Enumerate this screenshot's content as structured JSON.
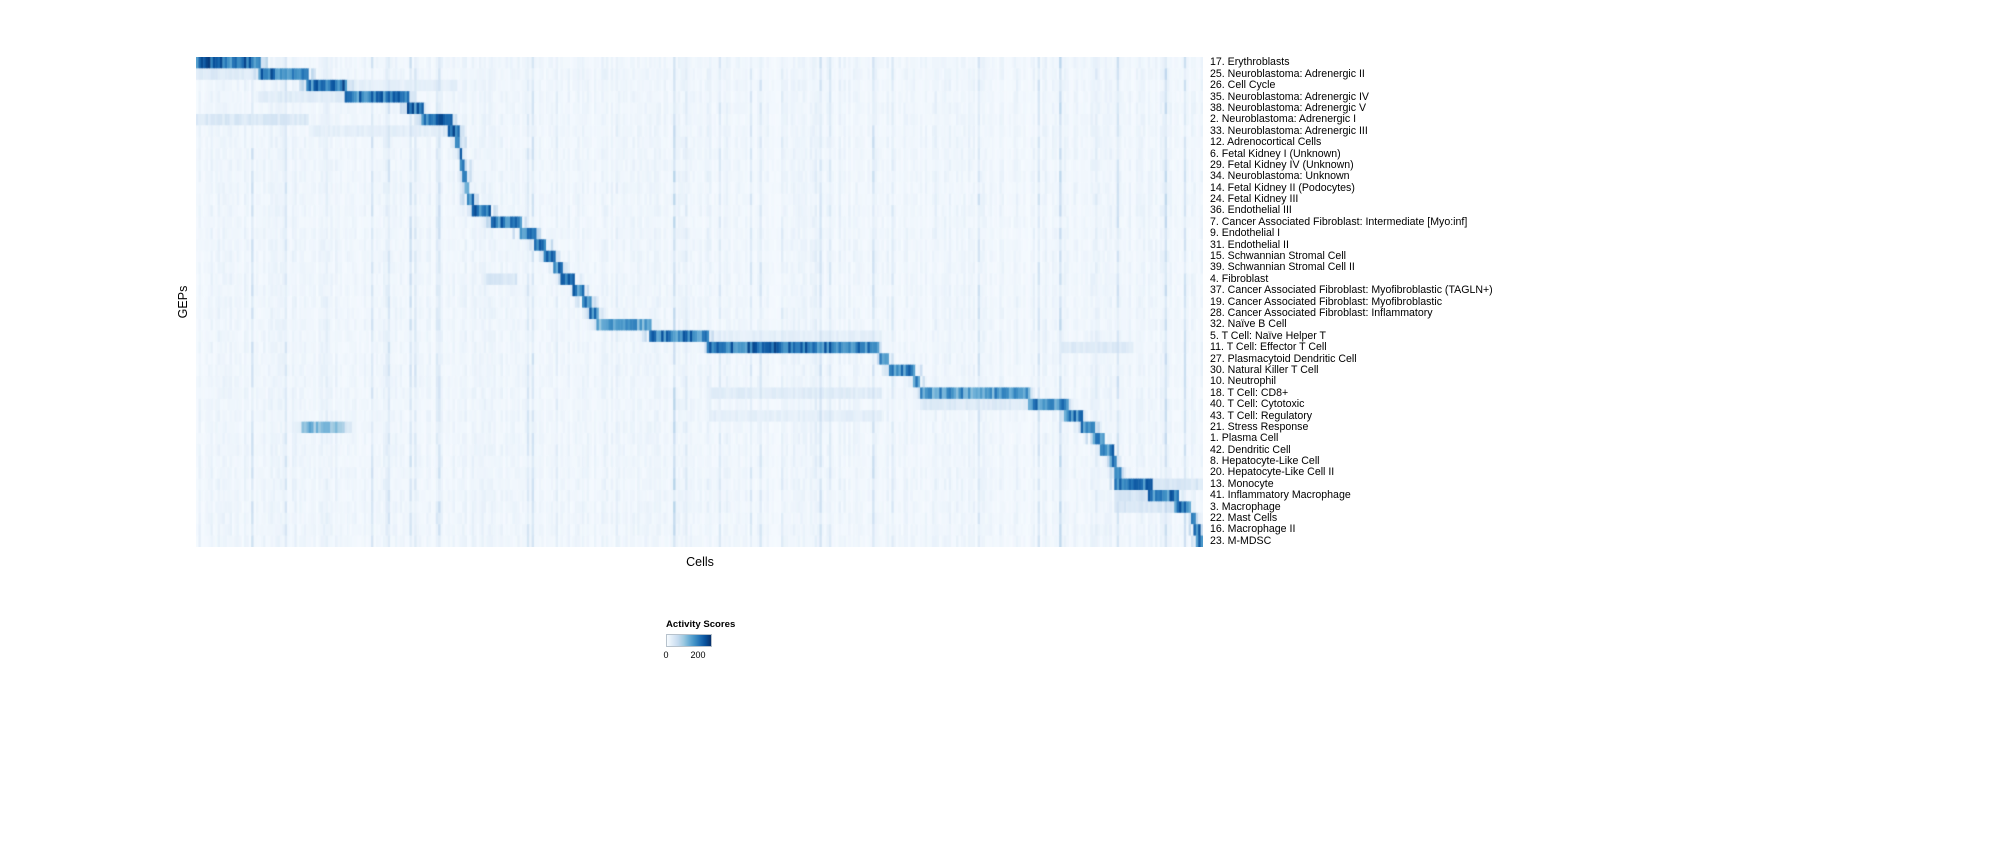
{
  "figure": {
    "xlabel": "Cells",
    "ylabel": "GEPs"
  },
  "chart_data": {
    "type": "heatmap",
    "title": "",
    "xlabel": "Cells",
    "ylabel": "GEPs",
    "grid": false,
    "legend_position": "bottom-center",
    "colorbar": {
      "title": "Activity Scores",
      "min": 0,
      "max": 200,
      "min_label": "0",
      "max_label": "200",
      "palette": [
        "#f7fbff",
        "#deebf7",
        "#c6dbef",
        "#9ecae1",
        "#6baed6",
        "#4292c6",
        "#2171b5",
        "#08519c",
        "#08306b"
      ]
    },
    "value_cap": 215,
    "background_noise": {
      "column_base_min": 4,
      "column_base_max": 14,
      "streak_probability": 0.08,
      "streak_extra_max": 32
    },
    "n_rows": 43,
    "rows": [
      {
        "label": "17. Erythroblasts",
        "bands": [
          [
            0.0,
            0.065,
            210
          ]
        ]
      },
      {
        "label": "25. Neuroblastoma: Adrenergic II",
        "bands": [
          [
            0.062,
            0.113,
            200
          ],
          [
            0.0,
            0.062,
            35
          ]
        ]
      },
      {
        "label": "26. Cell Cycle",
        "bands": [
          [
            0.109,
            0.151,
            200
          ],
          [
            0.151,
            0.26,
            25
          ]
        ]
      },
      {
        "label": "35. Neuroblastoma: Adrenergic IV",
        "bands": [
          [
            0.147,
            0.212,
            190
          ],
          [
            0.062,
            0.147,
            30
          ]
        ]
      },
      {
        "label": "38. Neuroblastoma: Adrenergic V",
        "bands": [
          [
            0.209,
            0.226,
            200
          ]
        ]
      },
      {
        "label": "2. Neuroblastoma: Adrenergic I",
        "bands": [
          [
            0.224,
            0.254,
            200
          ],
          [
            0.0,
            0.113,
            40
          ]
        ]
      },
      {
        "label": "33. Neuroblastoma: Adrenergic III",
        "bands": [
          [
            0.25,
            0.262,
            200
          ],
          [
            0.113,
            0.25,
            25
          ]
        ]
      },
      {
        "label": "12. Adrenocortical Cells",
        "bands": [
          [
            0.258,
            0.263,
            190
          ]
        ]
      },
      {
        "label": "6. Fetal Kidney I (Unknown)",
        "bands": [
          [
            0.261,
            0.265,
            185
          ]
        ]
      },
      {
        "label": "29. Fetal Kidney IV (Unknown)",
        "bands": [
          [
            0.263,
            0.267,
            185
          ]
        ]
      },
      {
        "label": "34. Neuroblastoma: Unknown",
        "bands": [
          [
            0.265,
            0.269,
            180
          ]
        ]
      },
      {
        "label": "14. Fetal Kidney II (Podocytes)",
        "bands": [
          [
            0.267,
            0.271,
            185
          ]
        ]
      },
      {
        "label": "24. Fetal Kidney III",
        "bands": [
          [
            0.269,
            0.275,
            190
          ]
        ]
      },
      {
        "label": "36. Endothelial III",
        "bands": [
          [
            0.273,
            0.294,
            200
          ]
        ]
      },
      {
        "label": "7. Cancer Associated Fibroblast: Intermediate [Myo:inf]",
        "bands": [
          [
            0.292,
            0.323,
            200
          ]
        ]
      },
      {
        "label": "9. Endothelial I",
        "bands": [
          [
            0.321,
            0.338,
            200
          ]
        ]
      },
      {
        "label": "31. Endothelial II",
        "bands": [
          [
            0.336,
            0.348,
            195
          ]
        ]
      },
      {
        "label": "15. Schwannian Stromal Cell",
        "bands": [
          [
            0.346,
            0.357,
            195
          ]
        ]
      },
      {
        "label": "39. Schwannian Stromal Cell II",
        "bands": [
          [
            0.355,
            0.365,
            190
          ]
        ]
      },
      {
        "label": "4. Fibroblast",
        "bands": [
          [
            0.363,
            0.377,
            200
          ],
          [
            0.285,
            0.32,
            40
          ]
        ]
      },
      {
        "label": "37. Cancer Associated Fibroblast: Myofibroblastic (TAGLN+)",
        "bands": [
          [
            0.375,
            0.385,
            195
          ]
        ]
      },
      {
        "label": "19. Cancer Associated Fibroblast: Myofibroblastic",
        "bands": [
          [
            0.383,
            0.393,
            195
          ]
        ]
      },
      {
        "label": "28. Cancer Associated Fibroblast: Inflammatory",
        "bands": [
          [
            0.391,
            0.399,
            190
          ]
        ]
      },
      {
        "label": "32. Naïve B Cell",
        "bands": [
          [
            0.397,
            0.453,
            150
          ]
        ]
      },
      {
        "label": "5. T Cell: Naïve Helper T",
        "bands": [
          [
            0.449,
            0.51,
            190
          ],
          [
            0.51,
            0.68,
            25
          ]
        ]
      },
      {
        "label": "11. T Cell: Effector T Cell",
        "bands": [
          [
            0.507,
            0.679,
            200
          ],
          [
            0.86,
            0.93,
            35
          ]
        ]
      },
      {
        "label": "27. Plasmacytoid Dendritic Cell",
        "bands": [
          [
            0.679,
            0.687,
            190
          ]
        ]
      },
      {
        "label": "30. Natural Killer T Cell",
        "bands": [
          [
            0.687,
            0.715,
            185
          ]
        ]
      },
      {
        "label": "10. Neutrophil",
        "bands": [
          [
            0.713,
            0.719,
            185
          ]
        ]
      },
      {
        "label": "18. T Cell: CD8+",
        "bands": [
          [
            0.719,
            0.828,
            160
          ],
          [
            0.51,
            0.68,
            30
          ]
        ]
      },
      {
        "label": "40. T Cell: Cytotoxic",
        "bands": [
          [
            0.826,
            0.866,
            180
          ],
          [
            0.72,
            0.83,
            35
          ]
        ]
      },
      {
        "label": "43. T Cell: Regulatory",
        "bands": [
          [
            0.862,
            0.88,
            185
          ],
          [
            0.51,
            0.68,
            25
          ]
        ]
      },
      {
        "label": "21. Stress Response",
        "bands": [
          [
            0.878,
            0.893,
            190
          ],
          [
            0.105,
            0.148,
            120
          ]
        ]
      },
      {
        "label": "1. Plasma Cell",
        "bands": [
          [
            0.89,
            0.902,
            195
          ]
        ]
      },
      {
        "label": "42. Dendritic Cell",
        "bands": [
          [
            0.898,
            0.911,
            185
          ]
        ]
      },
      {
        "label": "8. Hepatocyte-Like Cell",
        "bands": [
          [
            0.908,
            0.914,
            180
          ]
        ]
      },
      {
        "label": "20. Hepatocyte-Like Cell II",
        "bands": [
          [
            0.912,
            0.918,
            180
          ]
        ]
      },
      {
        "label": "13. Monocyte",
        "bands": [
          [
            0.913,
            0.949,
            195
          ],
          [
            0.949,
            1.0,
            40
          ]
        ]
      },
      {
        "label": "41. Inflammatory Macrophage",
        "bands": [
          [
            0.945,
            0.975,
            190
          ],
          [
            0.913,
            0.945,
            45
          ]
        ]
      },
      {
        "label": "3. Macrophage",
        "bands": [
          [
            0.971,
            0.989,
            195
          ],
          [
            0.913,
            0.971,
            40
          ]
        ]
      },
      {
        "label": "22. Mast Cells",
        "bands": [
          [
            0.987,
            0.993,
            185
          ]
        ]
      },
      {
        "label": "16. Macrophage II",
        "bands": [
          [
            0.991,
            0.997,
            190
          ]
        ]
      },
      {
        "label": "23. M-MDSC",
        "bands": [
          [
            0.994,
            1.0,
            200
          ]
        ]
      }
    ]
  }
}
